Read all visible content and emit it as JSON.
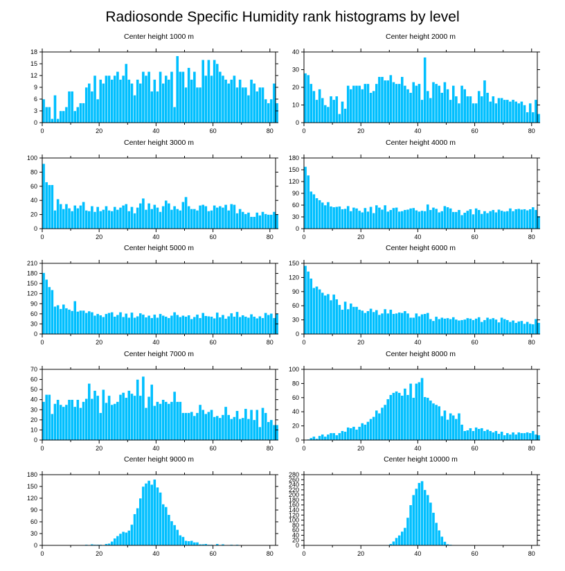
{
  "figure_title": "Radiosonde Specific Humidity rank histograms by level",
  "colors": {
    "bar": "#00bfff",
    "axis": "#000000"
  },
  "chart_data": [
    {
      "type": "bar",
      "title": "Center height 1000 m",
      "xlim": [
        0,
        82
      ],
      "ylim": [
        0,
        18
      ],
      "xticks": [
        0,
        20,
        40,
        60,
        80
      ],
      "yticks": [
        0,
        3,
        6,
        9,
        12,
        15,
        18
      ],
      "values": [
        6,
        4,
        4,
        1,
        7,
        1,
        3,
        3,
        4,
        8,
        8,
        3,
        4,
        5,
        5,
        9,
        10,
        8,
        12,
        6,
        11,
        10,
        12,
        12,
        11,
        12,
        13,
        11,
        12,
        15,
        11,
        10,
        7,
        11,
        10,
        13,
        12,
        13,
        8,
        11,
        8,
        13,
        10,
        12,
        11,
        13,
        4,
        17,
        13,
        13,
        9,
        14,
        11,
        13,
        9,
        9,
        16,
        12,
        16,
        12,
        16,
        15,
        13,
        12,
        11,
        10,
        11,
        12,
        9,
        11,
        9,
        9,
        7,
        11,
        10,
        8,
        9,
        9,
        6,
        5,
        6,
        10,
        5
      ]
    },
    {
      "type": "bar",
      "title": "Center height 2000 m",
      "xlim": [
        0,
        82
      ],
      "ylim": [
        0,
        40
      ],
      "xticks": [
        0,
        20,
        40,
        60,
        80
      ],
      "yticks": [
        0,
        10,
        20,
        30,
        40
      ],
      "values": [
        28,
        27,
        22,
        18,
        13,
        19,
        14,
        10,
        9,
        15,
        13,
        15,
        5,
        12,
        8,
        21,
        19,
        21,
        21,
        21,
        19,
        22,
        22,
        17,
        18,
        22,
        26,
        26,
        24,
        24,
        27,
        23,
        22,
        22,
        26,
        21,
        19,
        17,
        23,
        21,
        22,
        13,
        37,
        18,
        14,
        23,
        22,
        21,
        17,
        23,
        19,
        13,
        21,
        15,
        11,
        21,
        19,
        15,
        15,
        11,
        11,
        18,
        15,
        24,
        17,
        12,
        15,
        11,
        14,
        14,
        13,
        13,
        12,
        13,
        12,
        11,
        12,
        10,
        6,
        11,
        6,
        13,
        5
      ]
    },
    {
      "type": "bar",
      "title": "Center height 3000 m",
      "xlim": [
        0,
        82
      ],
      "ylim": [
        0,
        100
      ],
      "xticks": [
        0,
        20,
        40,
        60,
        80
      ],
      "yticks": [
        0,
        20,
        40,
        60,
        80,
        100
      ],
      "values": [
        92,
        66,
        62,
        62,
        26,
        42,
        35,
        28,
        35,
        29,
        25,
        33,
        29,
        33,
        38,
        26,
        25,
        32,
        24,
        31,
        25,
        27,
        32,
        26,
        25,
        31,
        27,
        30,
        33,
        35,
        25,
        31,
        22,
        30,
        36,
        43,
        27,
        36,
        28,
        34,
        30,
        24,
        32,
        40,
        36,
        27,
        32,
        28,
        26,
        38,
        45,
        32,
        28,
        28,
        26,
        33,
        34,
        32,
        25,
        26,
        33,
        30,
        32,
        30,
        34,
        26,
        35,
        34,
        22,
        28,
        24,
        21,
        23,
        17,
        17,
        23,
        19,
        24,
        21,
        20,
        20,
        24,
        20
      ]
    },
    {
      "type": "bar",
      "title": "Center height 4000 m",
      "xlim": [
        0,
        82
      ],
      "ylim": [
        0,
        180
      ],
      "xticks": [
        0,
        20,
        40,
        60,
        80
      ],
      "yticks": [
        0,
        30,
        60,
        90,
        120,
        150,
        180
      ],
      "values": [
        158,
        136,
        95,
        88,
        78,
        73,
        67,
        60,
        68,
        57,
        55,
        56,
        57,
        50,
        51,
        58,
        45,
        54,
        52,
        46,
        42,
        53,
        44,
        56,
        40,
        60,
        54,
        49,
        60,
        44,
        48,
        53,
        54,
        44,
        45,
        48,
        49,
        52,
        53,
        47,
        44,
        46,
        45,
        62,
        48,
        54,
        51,
        42,
        45,
        58,
        55,
        52,
        43,
        43,
        48,
        35,
        41,
        46,
        50,
        37,
        52,
        48,
        38,
        45,
        40,
        45,
        48,
        42,
        49,
        46,
        44,
        45,
        52,
        45,
        50,
        51,
        49,
        50,
        47,
        50,
        55,
        48,
        32
      ]
    },
    {
      "type": "bar",
      "title": "Center height 5000 m",
      "xlim": [
        0,
        82
      ],
      "ylim": [
        0,
        210
      ],
      "xticks": [
        0,
        20,
        40,
        60,
        80
      ],
      "yticks": [
        0,
        30,
        60,
        90,
        120,
        150,
        180,
        210
      ],
      "values": [
        182,
        162,
        140,
        131,
        82,
        86,
        75,
        88,
        77,
        73,
        69,
        98,
        67,
        70,
        70,
        63,
        68,
        65,
        55,
        60,
        56,
        51,
        60,
        63,
        65,
        52,
        57,
        65,
        51,
        61,
        49,
        64,
        49,
        53,
        62,
        58,
        50,
        55,
        48,
        58,
        49,
        60,
        55,
        52,
        48,
        55,
        65,
        57,
        51,
        55,
        52,
        56,
        45,
        51,
        58,
        48,
        63,
        54,
        53,
        52,
        47,
        64,
        50,
        57,
        46,
        53,
        62,
        52,
        66,
        51,
        56,
        52,
        49,
        59,
        52,
        47,
        53,
        48,
        63,
        57,
        61,
        48,
        60
      ]
    },
    {
      "type": "bar",
      "title": "Center height 6000 m",
      "xlim": [
        0,
        82
      ],
      "ylim": [
        0,
        150
      ],
      "xticks": [
        0,
        20,
        40,
        60,
        80
      ],
      "yticks": [
        0,
        30,
        60,
        90,
        120,
        150
      ],
      "values": [
        145,
        133,
        118,
        98,
        101,
        95,
        88,
        82,
        85,
        72,
        84,
        74,
        62,
        52,
        69,
        53,
        65,
        58,
        58,
        52,
        50,
        45,
        49,
        54,
        47,
        51,
        41,
        44,
        53,
        44,
        52,
        43,
        44,
        46,
        45,
        49,
        44,
        35,
        35,
        44,
        38,
        42,
        43,
        45,
        32,
        28,
        37,
        32,
        35,
        33,
        34,
        32,
        36,
        31,
        29,
        30,
        31,
        34,
        33,
        30,
        33,
        36,
        26,
        30,
        35,
        32,
        34,
        31,
        25,
        35,
        32,
        30,
        26,
        29,
        24,
        27,
        28,
        22,
        26,
        22,
        21,
        32,
        24
      ]
    },
    {
      "type": "bar",
      "title": "Center height 7000 m",
      "xlim": [
        0,
        82
      ],
      "ylim": [
        0,
        70
      ],
      "xticks": [
        0,
        20,
        40,
        60,
        80
      ],
      "yticks": [
        0,
        10,
        20,
        30,
        40,
        50,
        60,
        70
      ],
      "values": [
        38,
        45,
        45,
        26,
        36,
        40,
        35,
        33,
        35,
        40,
        40,
        33,
        40,
        32,
        38,
        41,
        56,
        41,
        49,
        44,
        27,
        50,
        37,
        44,
        35,
        36,
        38,
        45,
        47,
        42,
        49,
        46,
        44,
        60,
        44,
        63,
        32,
        43,
        55,
        34,
        38,
        36,
        40,
        38,
        36,
        38,
        48,
        38,
        38,
        27,
        27,
        27,
        28,
        24,
        27,
        35,
        30,
        26,
        28,
        30,
        23,
        24,
        22,
        25,
        33,
        25,
        21,
        23,
        29,
        21,
        22,
        31,
        21,
        30,
        20,
        30,
        13,
        32,
        27,
        18,
        20,
        15,
        15
      ]
    },
    {
      "type": "bar",
      "title": "Center height 8000 m",
      "xlim": [
        0,
        82
      ],
      "ylim": [
        0,
        100
      ],
      "xticks": [
        0,
        20,
        40,
        60,
        80
      ],
      "yticks": [
        0,
        20,
        40,
        60,
        80,
        100
      ],
      "values": [
        0,
        1,
        3,
        5,
        2,
        6,
        8,
        5,
        8,
        10,
        10,
        7,
        10,
        13,
        12,
        18,
        17,
        19,
        15,
        19,
        24,
        22,
        26,
        30,
        33,
        42,
        38,
        46,
        50,
        58,
        64,
        67,
        69,
        67,
        63,
        73,
        64,
        80,
        60,
        80,
        82,
        88,
        61,
        60,
        56,
        52,
        50,
        48,
        34,
        42,
        29,
        38,
        35,
        30,
        38,
        22,
        13,
        14,
        17,
        13,
        18,
        16,
        17,
        13,
        15,
        13,
        11,
        13,
        9,
        12,
        7,
        10,
        8,
        11,
        8,
        11,
        10,
        10,
        11,
        10,
        13,
        8,
        7
      ]
    },
    {
      "type": "bar",
      "title": "Center height 9000 m",
      "xlim": [
        0,
        82
      ],
      "ylim": [
        0,
        180
      ],
      "xticks": [
        0,
        20,
        40,
        60,
        80
      ],
      "yticks": [
        0,
        30,
        60,
        90,
        120,
        150,
        180
      ],
      "values": [
        0,
        0,
        0,
        0,
        0,
        0,
        0,
        0,
        0,
        0,
        0,
        0,
        0,
        0,
        0,
        2,
        1,
        3,
        2,
        2,
        2,
        1,
        4,
        5,
        10,
        18,
        24,
        30,
        35,
        33,
        38,
        53,
        80,
        95,
        120,
        150,
        158,
        165,
        155,
        168,
        148,
        135,
        105,
        98,
        78,
        62,
        52,
        40,
        26,
        22,
        12,
        11,
        12,
        8,
        8,
        3,
        3,
        4,
        2,
        2,
        0,
        4,
        0,
        3,
        0,
        1,
        2,
        0,
        2,
        0,
        0,
        0,
        0,
        0,
        0,
        0,
        0,
        0,
        0,
        0,
        0,
        0,
        0
      ]
    },
    {
      "type": "bar",
      "title": "Center height 10000 m",
      "xlim": [
        0,
        82
      ],
      "ylim": [
        0,
        280
      ],
      "xticks": [
        0,
        20,
        40,
        60,
        80
      ],
      "yticks": [
        0,
        20,
        40,
        60,
        80,
        100,
        120,
        140,
        160,
        180,
        200,
        220,
        240,
        260,
        280
      ],
      "values": [
        0,
        0,
        0,
        0,
        0,
        0,
        0,
        0,
        0,
        0,
        0,
        0,
        0,
        0,
        0,
        0,
        0,
        0,
        0,
        0,
        0,
        0,
        0,
        0,
        0,
        0,
        0,
        0,
        1,
        2,
        6,
        16,
        30,
        40,
        55,
        70,
        110,
        160,
        200,
        225,
        248,
        255,
        220,
        200,
        170,
        130,
        90,
        60,
        35,
        15,
        5,
        3,
        1,
        0,
        0,
        0,
        0,
        0,
        0,
        0,
        0,
        0,
        0,
        0,
        0,
        0,
        0,
        0,
        0,
        0,
        0,
        0,
        0,
        0,
        0,
        0,
        0,
        0,
        0,
        0,
        0,
        0,
        0
      ]
    }
  ]
}
